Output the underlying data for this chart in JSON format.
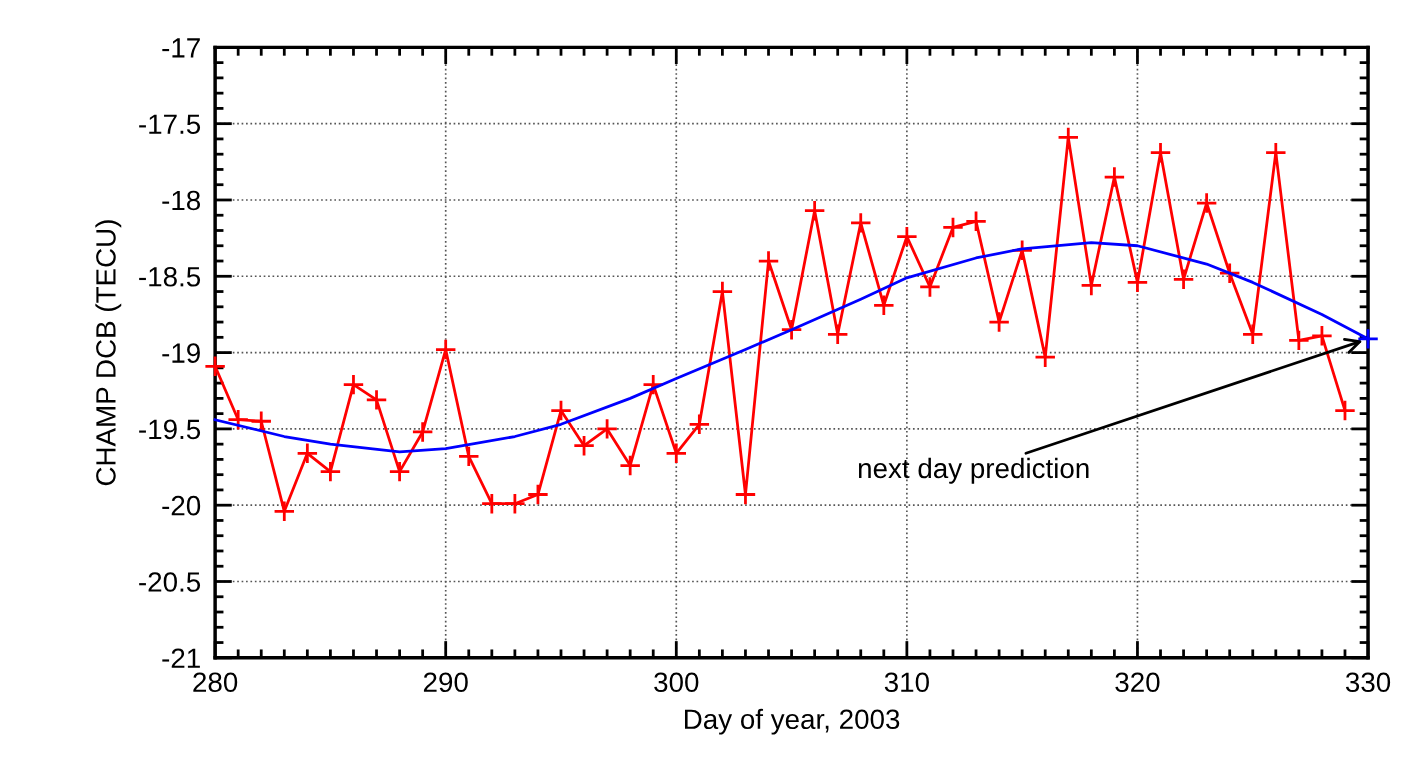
{
  "chart_data": {
    "type": "line",
    "xlabel": "Day of year, 2003",
    "ylabel": "CHAMP DCB (TECU)",
    "xlim": [
      280,
      330
    ],
    "xticks": [
      280,
      290,
      300,
      310,
      320,
      330
    ],
    "ylim": [
      -21,
      -17
    ],
    "yticks": [
      -21,
      -20.5,
      -20,
      -19.5,
      -19,
      -18.5,
      -18,
      -17.5,
      -17
    ],
    "grid": true,
    "line_style": "solid",
    "series": [
      {
        "color": "#ff0000",
        "marker": "cross",
        "x": [
          280,
          281,
          282,
          283,
          284,
          285,
          286,
          287,
          288,
          289,
          290,
          291,
          292,
          293,
          294,
          295,
          296,
          297,
          298,
          299,
          300,
          301,
          302,
          303,
          304,
          305,
          306,
          307,
          308,
          309,
          310,
          311,
          312,
          313,
          314,
          315,
          316,
          317,
          318,
          319,
          320,
          321,
          322,
          323,
          324,
          325,
          326,
          327,
          328,
          329
        ],
        "values": [
          -19.09,
          -19.44,
          -19.45,
          -20.04,
          -19.66,
          -19.78,
          -19.21,
          -19.31,
          -19.78,
          -19.52,
          -18.98,
          -19.68,
          -19.99,
          -19.99,
          -19.93,
          -19.38,
          -19.61,
          -19.5,
          -19.74,
          -19.21,
          -19.66,
          -19.47,
          -18.6,
          -19.93,
          -18.4,
          -18.85,
          -18.07,
          -18.88,
          -18.15,
          -18.69,
          -18.24,
          -18.57,
          -18.18,
          -18.14,
          -18.8,
          -18.33,
          -19.03,
          -17.59,
          -18.56,
          -17.85,
          -18.54,
          -17.69,
          -18.52,
          -18.02,
          -18.48,
          -18.88,
          -17.69,
          -18.92,
          -18.89,
          -19.38
        ]
      },
      {
        "type": "line",
        "color": "#0000ff",
        "marker": "none",
        "x": [
          280,
          283,
          285,
          288,
          290,
          293,
          295,
          298,
          300,
          303,
          305,
          308,
          310,
          313,
          315,
          318,
          320,
          323,
          325,
          328,
          330
        ],
        "values": [
          -19.44,
          -19.55,
          -19.6,
          -19.65,
          -19.63,
          -19.55,
          -19.47,
          -19.3,
          -19.17,
          -18.98,
          -18.85,
          -18.65,
          -18.51,
          -18.38,
          -18.32,
          -18.28,
          -18.3,
          -18.42,
          -18.54,
          -18.75,
          -18.91
        ]
      },
      {
        "type": "scatter",
        "color": "#0000ff",
        "marker": "cross",
        "x": [
          330
        ],
        "values": [
          -18.91
        ]
      }
    ],
    "annotations": [
      {
        "text": "next day prediction",
        "x": 330,
        "y": -18.91
      }
    ]
  }
}
